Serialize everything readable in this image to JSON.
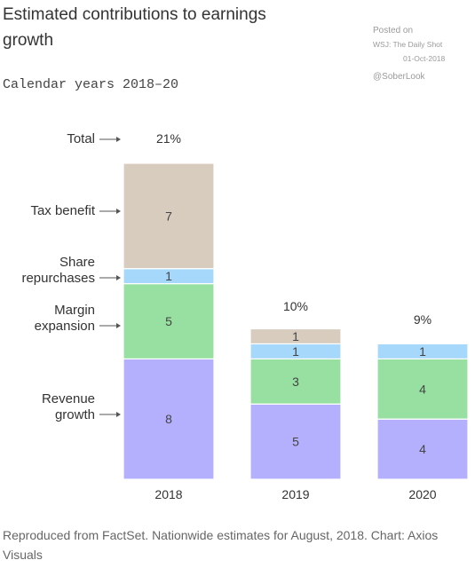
{
  "header": {
    "title": "Estimated contributions to earnings growth",
    "subtitle": "Calendar years 2018–20"
  },
  "watermark": {
    "posted_on": "Posted on",
    "source": "WSJ: The Daily Shot",
    "date": "01-Oct-2018",
    "handle": "@SoberLook"
  },
  "footer": {
    "source_note": "Reproduced from FactSet. Nationwide estimates for August, 2018. Chart: Axios Visuals"
  },
  "chart_data": {
    "type": "bar",
    "stacked": true,
    "categories": [
      "2018",
      "2019",
      "2020"
    ],
    "series": [
      {
        "name": "Revenue growth",
        "values": [
          8,
          5,
          4
        ],
        "color": "#b4b0fd"
      },
      {
        "name": "Margin expansion",
        "values": [
          5,
          3,
          4
        ],
        "color": "#97e0a1"
      },
      {
        "name": "Share repurchases",
        "values": [
          1,
          1,
          1
        ],
        "color": "#a5d8fb"
      },
      {
        "name": "Tax benefit",
        "values": [
          7,
          1,
          0
        ],
        "color": "#d8ccbf"
      }
    ],
    "totals": [
      "21%",
      "10%",
      "9%"
    ],
    "total_label": "Total",
    "ylim": [
      0,
      21
    ],
    "grid": false,
    "legend": "left, with arrows pointing to segments"
  }
}
